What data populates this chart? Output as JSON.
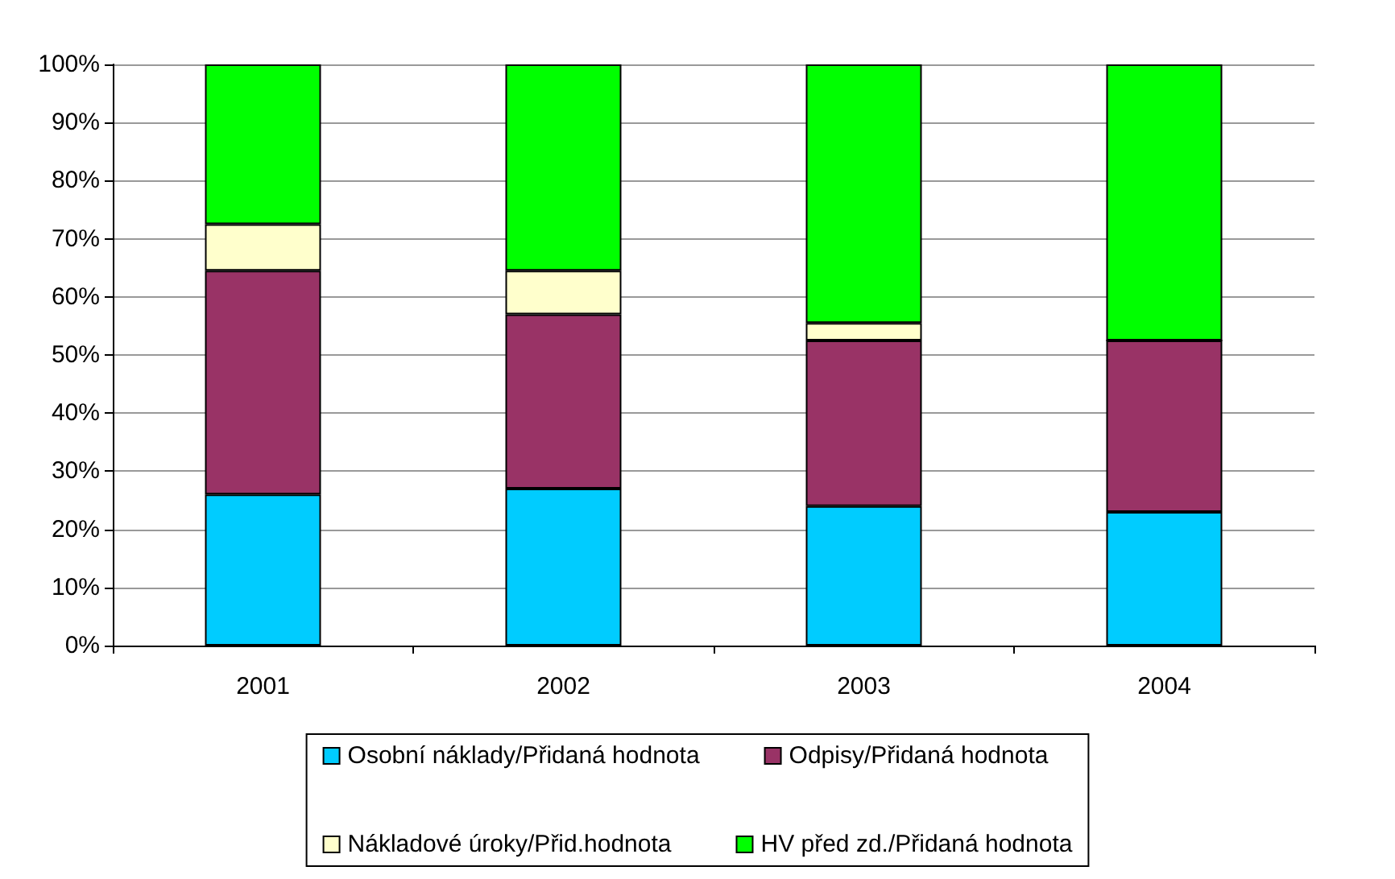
{
  "chart_data": {
    "type": "bar",
    "stacked": true,
    "categories": [
      "2001",
      "2002",
      "2003",
      "2004"
    ],
    "series": [
      {
        "name": "Osobní náklady/Přidaná hodnota",
        "color": "#00ccff",
        "values": [
          26,
          27,
          24,
          23
        ]
      },
      {
        "name": "Odpisy/Přidaná hodnota",
        "color": "#993366",
        "values": [
          38.5,
          30,
          28.5,
          29.5
        ]
      },
      {
        "name": "Nákladové úroky/Přid.hodnota",
        "color": "#ffffcc",
        "values": [
          8,
          7.5,
          3,
          0
        ]
      },
      {
        "name": "HV před zd./Přidaná hodnota",
        "color": "#00ff00",
        "values": [
          27.5,
          35.5,
          44.5,
          47.5
        ]
      }
    ],
    "ylim": [
      0,
      100
    ],
    "yticks": [
      {
        "value": 0,
        "label": "0%"
      },
      {
        "value": 10,
        "label": "10%"
      },
      {
        "value": 20,
        "label": "20%"
      },
      {
        "value": 30,
        "label": "30%"
      },
      {
        "value": 40,
        "label": "40%"
      },
      {
        "value": 50,
        "label": "50%"
      },
      {
        "value": 60,
        "label": "60%"
      },
      {
        "value": 70,
        "label": "70%"
      },
      {
        "value": 80,
        "label": "80%"
      },
      {
        "value": 90,
        "label": "90%"
      },
      {
        "value": 100,
        "label": "100%"
      }
    ],
    "grid": "y",
    "legend": "bottom"
  }
}
